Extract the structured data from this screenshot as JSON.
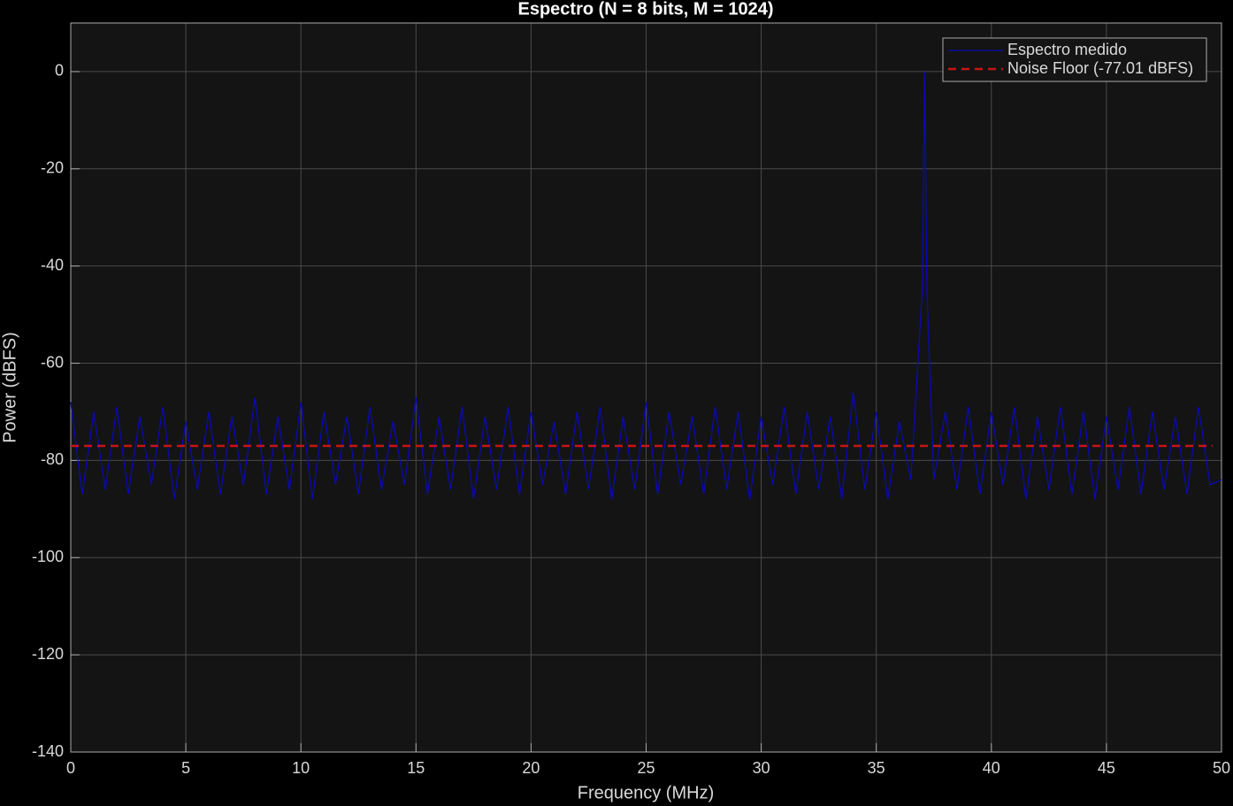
{
  "chart_data": {
    "type": "line",
    "title": "Espectro (N = 8 bits, M = 1024)",
    "xlabel": "Frequency (MHz)",
    "ylabel": "Power (dBFS)",
    "xlim": [
      0,
      50
    ],
    "ylim": [
      -140,
      10
    ],
    "xticks": [
      0,
      5,
      10,
      15,
      20,
      25,
      30,
      35,
      40,
      45,
      50
    ],
    "yticks": [
      -140,
      -120,
      -100,
      -80,
      -60,
      -40,
      -20,
      0
    ],
    "grid": true,
    "legend": "upper right",
    "x": [
      0,
      0.5,
      1,
      1.5,
      2,
      2.5,
      3,
      3.5,
      4,
      4.5,
      5,
      5.5,
      6,
      6.5,
      7,
      7.5,
      8,
      8.5,
      9,
      9.5,
      10,
      10.5,
      11,
      11.5,
      12,
      12.5,
      13,
      13.5,
      14,
      14.5,
      15,
      15.5,
      16,
      16.5,
      17,
      17.5,
      18,
      18.5,
      19,
      19.5,
      20,
      20.5,
      21,
      21.5,
      22,
      22.5,
      23,
      23.5,
      24,
      24.5,
      25,
      25.5,
      26,
      26.5,
      27,
      27.5,
      28,
      28.5,
      29,
      29.5,
      30,
      30.5,
      31,
      31.5,
      32,
      32.5,
      33,
      33.5,
      34,
      34.5,
      35,
      35.5,
      36,
      36.5,
      37,
      37.1,
      37.2,
      37.5,
      38,
      38.5,
      39,
      39.5,
      40,
      40.5,
      41,
      41.5,
      42,
      42.5,
      43,
      43.5,
      44,
      44.5,
      45,
      45.5,
      46,
      46.5,
      47,
      47.5,
      48,
      48.5,
      49,
      49.5,
      50
    ],
    "series": [
      {
        "name": "Espectro medido",
        "color": "#0a0ab4",
        "values": [
          -68,
          -87,
          -70,
          -86,
          -69,
          -87,
          -71,
          -85,
          -69,
          -88,
          -72,
          -86,
          -70,
          -87,
          -71,
          -85,
          -67,
          -87,
          -71,
          -86,
          -68,
          -88,
          -70,
          -85,
          -71,
          -87,
          -69,
          -86,
          -72,
          -85,
          -67,
          -87,
          -71,
          -86,
          -69,
          -88,
          -71,
          -86,
          -69,
          -87,
          -70,
          -85,
          -72,
          -87,
          -70,
          -86,
          -69,
          -88,
          -71,
          -86,
          -68,
          -87,
          -70,
          -85,
          -71,
          -87,
          -69,
          -86,
          -70,
          -88,
          -71,
          -85,
          -69,
          -87,
          -70,
          -86,
          -71,
          -88,
          -66,
          -86,
          -70,
          -88,
          -72,
          -84,
          -45,
          0,
          -45,
          -84,
          -70,
          -86,
          -69,
          -87,
          -70,
          -85,
          -69,
          -88,
          -71,
          -86,
          -69,
          -87,
          -70,
          -88,
          -71,
          -86,
          -69,
          -87,
          -70,
          -86,
          -71,
          -87,
          -69,
          -85,
          -84
        ]
      }
    ],
    "noise_floor": {
      "name": "Noise Floor (-77.01 dBFS)",
      "color": "#c81414",
      "value": -77.01
    }
  }
}
